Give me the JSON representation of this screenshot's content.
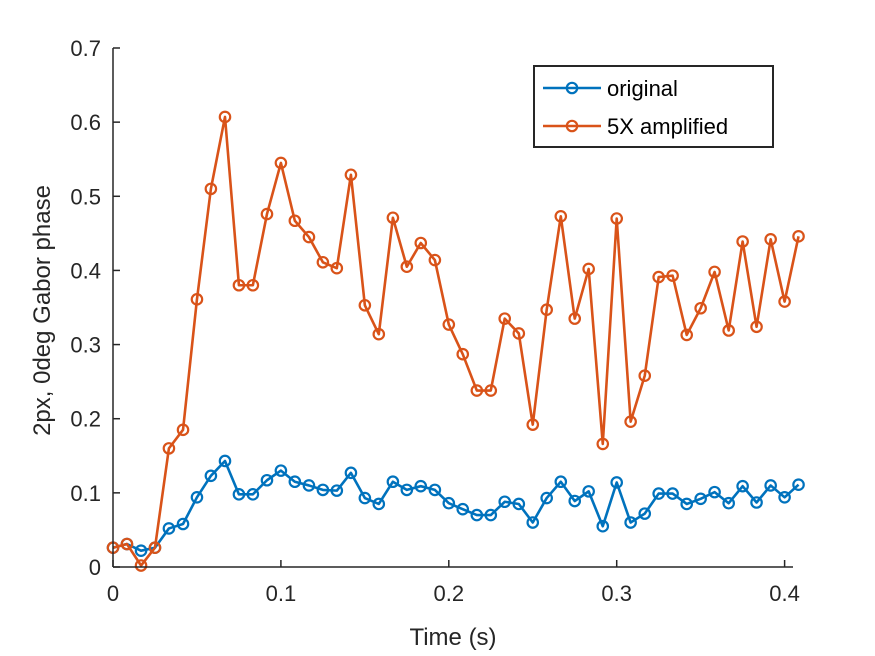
{
  "chart_data": {
    "type": "line",
    "title": "",
    "xlabel": "Time (s)",
    "ylabel": "2px, 0deg Gabor phase",
    "xlim": [
      0,
      0.405
    ],
    "ylim": [
      0,
      0.7
    ],
    "x_ticks": [
      0,
      0.1,
      0.2,
      0.3,
      0.4
    ],
    "x_tick_labels": [
      "0",
      "0.1",
      "0.2",
      "0.3",
      "0.4"
    ],
    "y_ticks": [
      0,
      0.1,
      0.2,
      0.3,
      0.4,
      0.5,
      0.6,
      0.7
    ],
    "y_tick_labels": [
      "0",
      "0.1",
      "0.2",
      "0.3",
      "0.4",
      "0.5",
      "0.6",
      "0.7"
    ],
    "grid": false,
    "legend_position": "top-right",
    "x": [
      0,
      0.0083,
      0.0167,
      0.025,
      0.0333,
      0.0417,
      0.05,
      0.0583,
      0.0667,
      0.075,
      0.0833,
      0.0917,
      0.1,
      0.1083,
      0.1167,
      0.125,
      0.1333,
      0.1417,
      0.15,
      0.1583,
      0.1667,
      0.175,
      0.1833,
      0.1917,
      0.2,
      0.2083,
      0.2167,
      0.225,
      0.2333,
      0.2417,
      0.25,
      0.2583,
      0.2667,
      0.275,
      0.2833,
      0.2917,
      0.3,
      0.3083,
      0.3167,
      0.325,
      0.3333,
      0.3417,
      0.35,
      0.3583,
      0.3667,
      0.375,
      0.3833,
      0.3917,
      0.4,
      0.4083
    ],
    "series": [
      {
        "name": "original",
        "color": "#0072BD",
        "values": [
          0.026,
          0.031,
          0.022,
          0.026,
          0.052,
          0.058,
          0.094,
          0.123,
          0.143,
          0.098,
          0.098,
          0.117,
          0.13,
          0.115,
          0.11,
          0.104,
          0.103,
          0.127,
          0.093,
          0.085,
          0.115,
          0.104,
          0.109,
          0.104,
          0.086,
          0.078,
          0.07,
          0.07,
          0.088,
          0.085,
          0.06,
          0.093,
          0.115,
          0.089,
          0.102,
          0.055,
          0.114,
          0.06,
          0.072,
          0.099,
          0.099,
          0.085,
          0.092,
          0.101,
          0.086,
          0.109,
          0.087,
          0.11,
          0.094,
          0.111
        ]
      },
      {
        "name": "5X amplified",
        "color": "#D95319",
        "values": [
          0.026,
          0.031,
          0.002,
          0.026,
          0.16,
          0.185,
          0.361,
          0.51,
          0.607,
          0.38,
          0.38,
          0.476,
          0.545,
          0.467,
          0.445,
          0.411,
          0.403,
          0.529,
          0.353,
          0.314,
          0.471,
          0.405,
          0.437,
          0.414,
          0.327,
          0.287,
          0.238,
          0.238,
          0.335,
          0.315,
          0.192,
          0.347,
          0.473,
          0.335,
          0.402,
          0.166,
          0.47,
          0.196,
          0.258,
          0.391,
          0.393,
          0.313,
          0.349,
          0.398,
          0.319,
          0.439,
          0.324,
          0.442,
          0.358,
          0.446
        ]
      }
    ]
  }
}
